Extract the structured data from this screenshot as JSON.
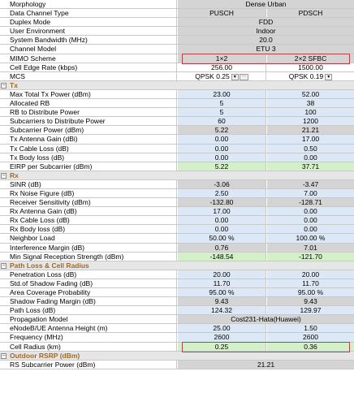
{
  "top_rows": [
    {
      "label": "Morphology",
      "single": "Dense Urban",
      "style": "gray"
    },
    {
      "label": "Data Channel Type",
      "v1": "PUSCH",
      "v2": "PDSCH",
      "style": "gray"
    },
    {
      "label": "Duplex Mode",
      "single": "FDD",
      "style": "gray"
    },
    {
      "label": "User Environment",
      "single": "Indoor",
      "style": "gray"
    },
    {
      "label": "System Bandwidth (MHz)",
      "single": "20.0",
      "style": "gray"
    },
    {
      "label": "Channel Model",
      "single": "ETU 3",
      "style": "gray"
    },
    {
      "label": "MIMO Scheme",
      "v1": "1×2",
      "v2": "2×2 SFBC",
      "style": "gray"
    },
    {
      "label": "Cell Edge Rate (kbps)",
      "v1": "256.00",
      "v2": "1500.00",
      "style": "white"
    }
  ],
  "mcs": {
    "label": "MCS",
    "v1": "QPSK 0.25",
    "v2": "QPSK 0.19",
    "dd_glyph": "▾",
    "dots_glyph": "···"
  },
  "sections": [
    {
      "title": "Tx",
      "toggle": "−",
      "rows": [
        {
          "label": "Max Total Tx Power (dBm)",
          "v1": "23.00",
          "v2": "52.00",
          "style": "blue"
        },
        {
          "label": "Allocated RB",
          "v1": "5",
          "v2": "38",
          "style": "blue"
        },
        {
          "label": "RB to Distribute Power",
          "v1": "5",
          "v2": "100",
          "style": "blue"
        },
        {
          "label": "Subcarriers to Distribute Power",
          "v1": "60",
          "v2": "1200",
          "style": "blue"
        },
        {
          "label": "Subcarrier Power (dBm)",
          "v1": "5.22",
          "v2": "21.21",
          "style": "gray"
        },
        {
          "label": "Tx Antenna Gain (dBi)",
          "v1": "0.00",
          "v2": "17.00",
          "style": "blue"
        },
        {
          "label": "Tx Cable Loss (dB)",
          "v1": "0.00",
          "v2": "0.50",
          "style": "blue"
        },
        {
          "label": "Tx Body loss (dB)",
          "v1": "0.00",
          "v2": "0.00",
          "style": "blue"
        },
        {
          "label": "EIRP per Subcarrier (dBm)",
          "v1": "5.22",
          "v2": "37.71",
          "style": "green"
        }
      ]
    },
    {
      "title": "Rx",
      "toggle": "−",
      "rows": [
        {
          "label": "SINR (dB)",
          "v1": "-3.06",
          "v2": "-3.47",
          "style": "gray"
        },
        {
          "label": "Rx Noise Figure (dB)",
          "v1": "2.50",
          "v2": "7.00",
          "style": "blue"
        },
        {
          "label": "Receiver Sensitivity (dBm)",
          "v1": "-132.80",
          "v2": "-128.71",
          "style": "gray"
        },
        {
          "label": "Rx Antenna Gain (dB)",
          "v1": "17.00",
          "v2": "0.00",
          "style": "blue"
        },
        {
          "label": "Rx Cable Loss (dB)",
          "v1": "0.00",
          "v2": "0.00",
          "style": "blue"
        },
        {
          "label": "Rx Body loss (dB)",
          "v1": "0.00",
          "v2": "0.00",
          "style": "blue"
        },
        {
          "label": "Neighbor Load",
          "v1": "50.00 %",
          "v2": "100.00 %",
          "style": "blue"
        },
        {
          "label": "Interference Margin (dB)",
          "v1": "0.76",
          "v2": "7.01",
          "style": "gray"
        },
        {
          "label": "Min Signal Reception Strength (dBm)",
          "v1": "-148.54",
          "v2": "-121.70",
          "style": "green"
        }
      ]
    },
    {
      "title": "Path Loss & Cell Radius",
      "toggle": "−",
      "rows": [
        {
          "label": "Penetration Loss (dB)",
          "v1": "20.00",
          "v2": "20.00",
          "style": "blue"
        },
        {
          "label": "Std.of Shadow Fading (dB)",
          "v1": "11.70",
          "v2": "11.70",
          "style": "blue"
        },
        {
          "label": "Area Coverage Probability",
          "v1": "95.00 %",
          "v2": "95.00 %",
          "style": "blue"
        },
        {
          "label": "Shadow Fading Margin (dB)",
          "v1": "9.43",
          "v2": "9.43",
          "style": "gray"
        },
        {
          "label": "Path Loss (dB)",
          "v1": "124.32",
          "v2": "129.97",
          "style": "blue"
        },
        {
          "label": "Propagation Model",
          "single": "Cost231-Hata(Huawei)",
          "style": "gray"
        },
        {
          "label": "eNodeB/UE Antenna Height (m)",
          "v1": "25.00",
          "v2": "1.50",
          "style": "blue"
        },
        {
          "label": "Frequency (MHz)",
          "v1": "2600",
          "v2": "2600",
          "style": "blue"
        },
        {
          "label": "Cell Radius (km)",
          "v1": "0.25",
          "v2": "0.36",
          "style": "green"
        }
      ]
    },
    {
      "title": "Outdoor RSRP (dBm)",
      "toggle": "−",
      "rows": [
        {
          "label": "RS Subcarrier Power (dBm)",
          "single": "21.21",
          "style": "gray"
        }
      ]
    }
  ],
  "colors": {
    "section_title": "#9c6a2a",
    "highlight_border": "#b4434a",
    "gray_cell": "#d4d4d4",
    "blue_cell": "#dde8f6",
    "green_cell": "#d4f0c8"
  }
}
